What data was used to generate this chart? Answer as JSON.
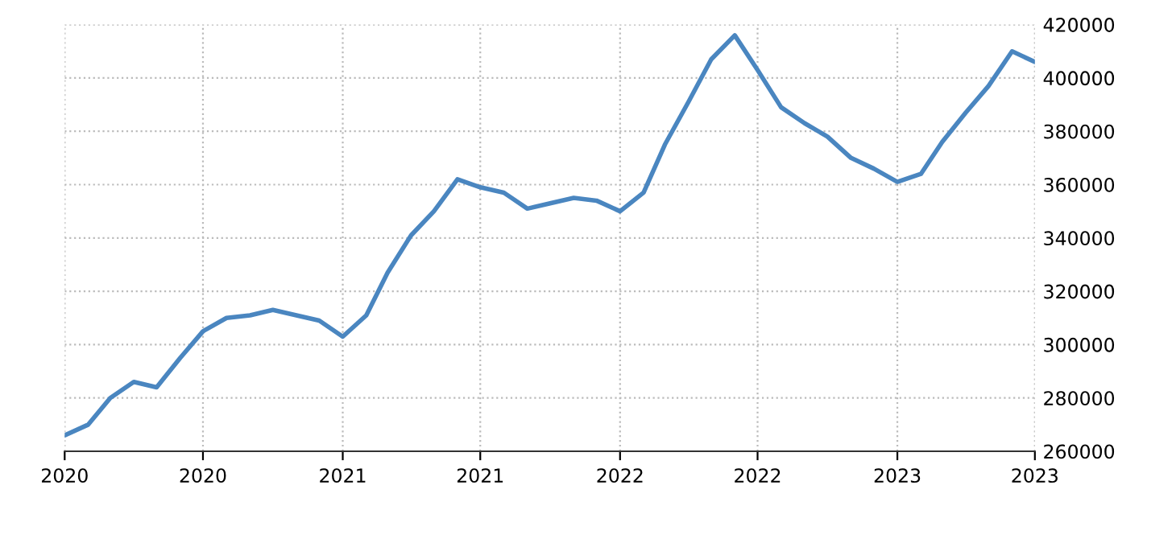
{
  "chart_data": {
    "type": "line",
    "x": [
      "2020-01",
      "2020-02",
      "2020-03",
      "2020-04",
      "2020-05",
      "2020-06",
      "2020-07",
      "2020-08",
      "2020-09",
      "2020-10",
      "2020-11",
      "2020-12",
      "2021-01",
      "2021-02",
      "2021-03",
      "2021-04",
      "2021-05",
      "2021-06",
      "2021-07",
      "2021-08",
      "2021-09",
      "2021-10",
      "2021-11",
      "2021-12",
      "2022-01",
      "2022-02",
      "2022-03",
      "2022-04",
      "2022-05",
      "2022-06",
      "2022-07",
      "2022-08",
      "2022-09",
      "2022-10",
      "2022-11",
      "2022-12",
      "2023-01",
      "2023-02",
      "2023-03",
      "2023-04",
      "2023-05",
      "2023-06",
      "2023-07"
    ],
    "series": [
      {
        "color": "#4a86c0",
        "values": [
          266000,
          270000,
          280000,
          286000,
          284000,
          295000,
          305000,
          310000,
          311000,
          313000,
          311000,
          309000,
          303000,
          311000,
          327000,
          341000,
          350000,
          362000,
          359000,
          357000,
          351000,
          353000,
          355000,
          354000,
          350000,
          357000,
          375000,
          391000,
          407000,
          416000,
          403000,
          389000,
          383000,
          378000,
          370000,
          366000,
          361000,
          364000,
          376000,
          387000,
          397000,
          410000,
          406000
        ]
      }
    ],
    "xlim": [
      "2020-01",
      "2023-07"
    ],
    "xticks": [
      {
        "value": "2020-01",
        "label": "2020"
      },
      {
        "value": "2020-07",
        "label": "2020"
      },
      {
        "value": "2021-01",
        "label": "2021"
      },
      {
        "value": "2021-07",
        "label": "2021"
      },
      {
        "value": "2022-01",
        "label": "2022"
      },
      {
        "value": "2022-07",
        "label": "2022"
      },
      {
        "value": "2023-01",
        "label": "2023"
      },
      {
        "value": "2023-07",
        "label": "2023"
      }
    ],
    "ylim": [
      260000,
      420000
    ],
    "yticks": [
      260000,
      280000,
      300000,
      320000,
      340000,
      360000,
      380000,
      400000,
      420000
    ],
    "grid": true,
    "line_style": "solid",
    "marker": "none"
  }
}
